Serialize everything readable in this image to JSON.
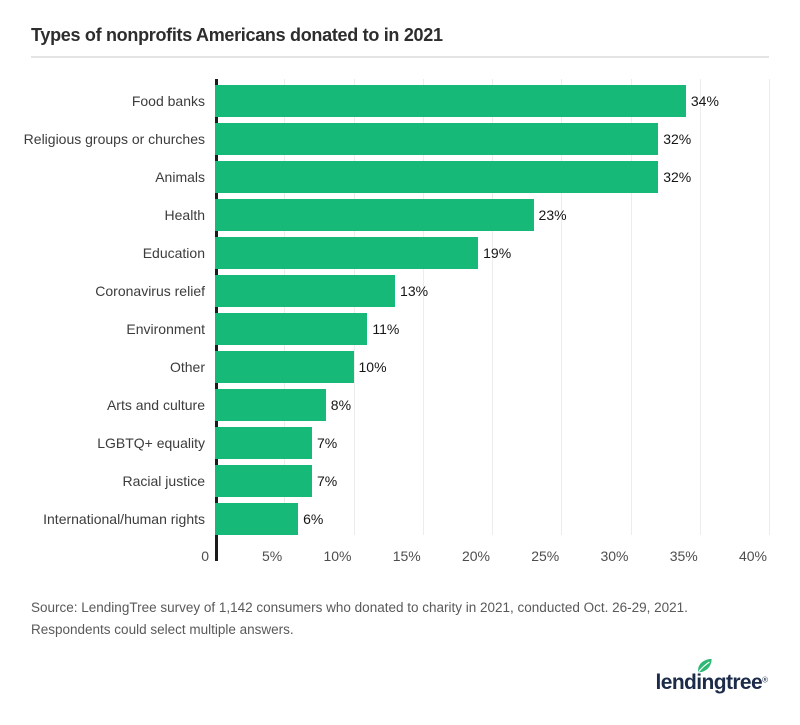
{
  "header": {
    "title": "Types of nonprofits Americans donated to in 2021"
  },
  "chart_data": {
    "type": "bar",
    "orientation": "horizontal",
    "title": "Types of nonprofits Americans donated to in 2021",
    "categories": [
      "Food banks",
      "Religious groups or churches",
      "Animals",
      "Health",
      "Education",
      "Coronavirus relief",
      "Environment",
      "Other",
      "Arts and culture",
      "LGBTQ+ equality",
      "Racial justice",
      "International/human rights"
    ],
    "values": [
      34,
      32,
      32,
      23,
      19,
      13,
      11,
      10,
      8,
      7,
      7,
      6
    ],
    "value_labels": [
      "34%",
      "32%",
      "32%",
      "23%",
      "19%",
      "13%",
      "11%",
      "10%",
      "8%",
      "7%",
      "7%",
      "6%"
    ],
    "xlim": [
      0,
      40
    ],
    "x_ticks": [
      {
        "pos": 0,
        "label": "0"
      },
      {
        "pos": 5,
        "label": "5%"
      },
      {
        "pos": 10,
        "label": "10%"
      },
      {
        "pos": 15,
        "label": "15%"
      },
      {
        "pos": 20,
        "label": "20%"
      },
      {
        "pos": 25,
        "label": "25%"
      },
      {
        "pos": 30,
        "label": "30%"
      },
      {
        "pos": 35,
        "label": "35%"
      },
      {
        "pos": 40,
        "label": "40%"
      }
    ],
    "grid": true,
    "legend": "none",
    "bar_color": "#17b978",
    "axis_color": "#1b1b1b",
    "gridline_color": "#ececec"
  },
  "footer": {
    "source": "Source: LendingTree survey of 1,142 consumers who donated to charity in 2021, conducted Oct. 26-29, 2021. Respondents could select multiple answers.",
    "logo_text": "lendingtree",
    "logo_reg": "®"
  },
  "colors": {
    "bar_green": "#17b978",
    "leaf_green": "#2db873",
    "logo_navy": "#1b2b49",
    "title_text": "#2d2d2d",
    "divider": "#e4e4e4"
  }
}
